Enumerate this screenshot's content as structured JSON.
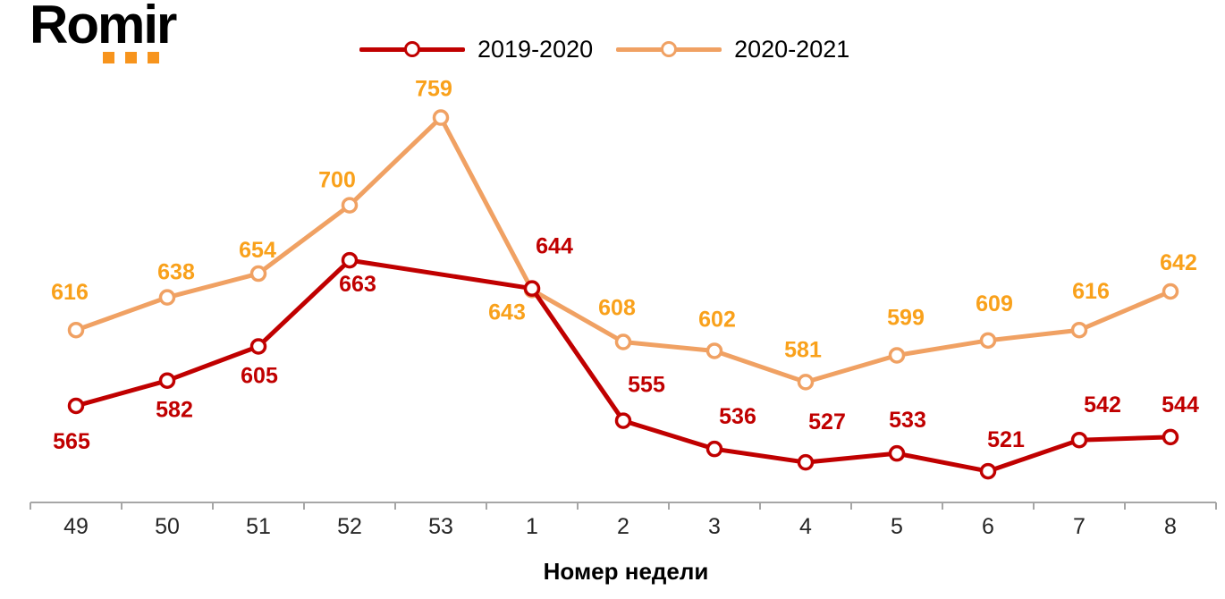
{
  "logo": {
    "text": "Romir",
    "dots_color": "#F7941D"
  },
  "legend": {
    "items": [
      {
        "label": "2019-2020",
        "color": "#C00000"
      },
      {
        "label": "2020-2021",
        "color": "#F0A163"
      }
    ]
  },
  "chart_data": {
    "type": "line",
    "title": "",
    "xlabel": "Номер недели",
    "ylabel": "",
    "categories": [
      "49",
      "50",
      "51",
      "52",
      "53",
      "1",
      "2",
      "3",
      "4",
      "5",
      "6",
      "7",
      "8"
    ],
    "series": [
      {
        "name": "2019-2020",
        "line_color": "#C00000",
        "label_color": "#C00000",
        "values": [
          565,
          582,
          605,
          663,
          null,
          644,
          555,
          536,
          527,
          533,
          521,
          542,
          544
        ],
        "label_dx": [
          -5,
          8,
          1,
          9,
          0,
          25,
          26,
          26,
          24,
          12,
          20,
          26,
          11
        ],
        "label_dy": [
          40,
          33,
          33,
          27,
          0,
          -47,
          -40,
          -36,
          -45,
          -37,
          -35,
          -39,
          -36
        ]
      },
      {
        "name": "2020-2021",
        "line_color": "#F0A163",
        "label_color": "#F9A11B",
        "values": [
          616,
          638,
          654,
          700,
          759,
          643,
          608,
          602,
          581,
          599,
          609,
          616,
          642
        ],
        "label_dx": [
          -7,
          10,
          -1,
          -14,
          -8,
          -28,
          -7,
          3,
          -3,
          10,
          7,
          13,
          9
        ],
        "label_dy": [
          -42,
          -28,
          -26,
          -28,
          -32,
          25,
          -38,
          -35,
          -36,
          -42,
          -41,
          -43,
          -32
        ]
      }
    ],
    "axis": {
      "color": "#A6A6A6",
      "tick_label_color": "#262626"
    },
    "ylim": [
      500,
      800
    ],
    "y_axis_visible": false,
    "grid": false,
    "legend_position": "top-center"
  }
}
